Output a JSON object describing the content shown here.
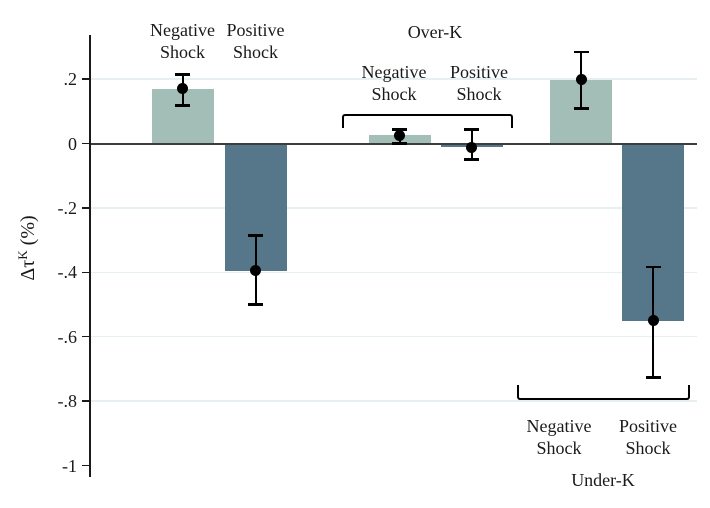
{
  "chart_data": {
    "type": "bar",
    "title": "",
    "ylabel": "Δτ^K (%)",
    "ylabel_parts": {
      "prefix": "Δτ",
      "sup": "K",
      "suffix": " (%)"
    },
    "ylim": [
      -1,
      0.3
    ],
    "grid": true,
    "legend_position": "none",
    "yticks": [
      {
        "value": 0.2,
        "label": ".2",
        "grid": true,
        "zero": false
      },
      {
        "value": 0,
        "label": "0",
        "grid": false,
        "zero": true
      },
      {
        "value": -0.2,
        "label": "-.2",
        "grid": true,
        "zero": false
      },
      {
        "value": -0.4,
        "label": "-.4",
        "grid": true,
        "zero": false
      },
      {
        "value": -0.6,
        "label": "-.6",
        "grid": true,
        "zero": false
      },
      {
        "value": -0.8,
        "label": "-.8",
        "grid": true,
        "zero": false
      },
      {
        "value": -1,
        "label": "-1",
        "grid": false,
        "zero": false
      }
    ],
    "series_colors": {
      "Negative Shock": "#a3bdb7",
      "Positive Shock": "#567689"
    },
    "groups": [
      {
        "name": "",
        "label_position": "above",
        "bracket": "none",
        "bars": [
          {
            "label": "Negative Shock",
            "value": 0.17,
            "ci_low": 0.118,
            "ci_high": 0.215
          },
          {
            "label": "Positive Shock",
            "value": -0.395,
            "ci_low": -0.5,
            "ci_high": -0.285
          }
        ]
      },
      {
        "name": "Over-K",
        "label_position": "above",
        "bracket": "top",
        "bars": [
          {
            "label": "Negative Shock",
            "value": 0.025,
            "ci_low": 0.0,
            "ci_high": 0.045
          },
          {
            "label": "Positive Shock",
            "value": -0.012,
            "ci_low": -0.05,
            "ci_high": 0.045
          }
        ]
      },
      {
        "name": "Under-K",
        "label_position": "below",
        "bracket": "bottom",
        "bars": [
          {
            "label": "Negative Shock",
            "value": 0.198,
            "ci_low": 0.108,
            "ci_high": 0.285
          },
          {
            "label": "Positive Shock",
            "value": -0.55,
            "ci_low": -0.728,
            "ci_high": -0.382
          }
        ]
      }
    ],
    "colors": {
      "grid": "#e6eff1",
      "zero_line": "#3d3d3d",
      "axis": "#1a1a1a",
      "error_bar": "#000000",
      "background": "#ffffff"
    }
  }
}
